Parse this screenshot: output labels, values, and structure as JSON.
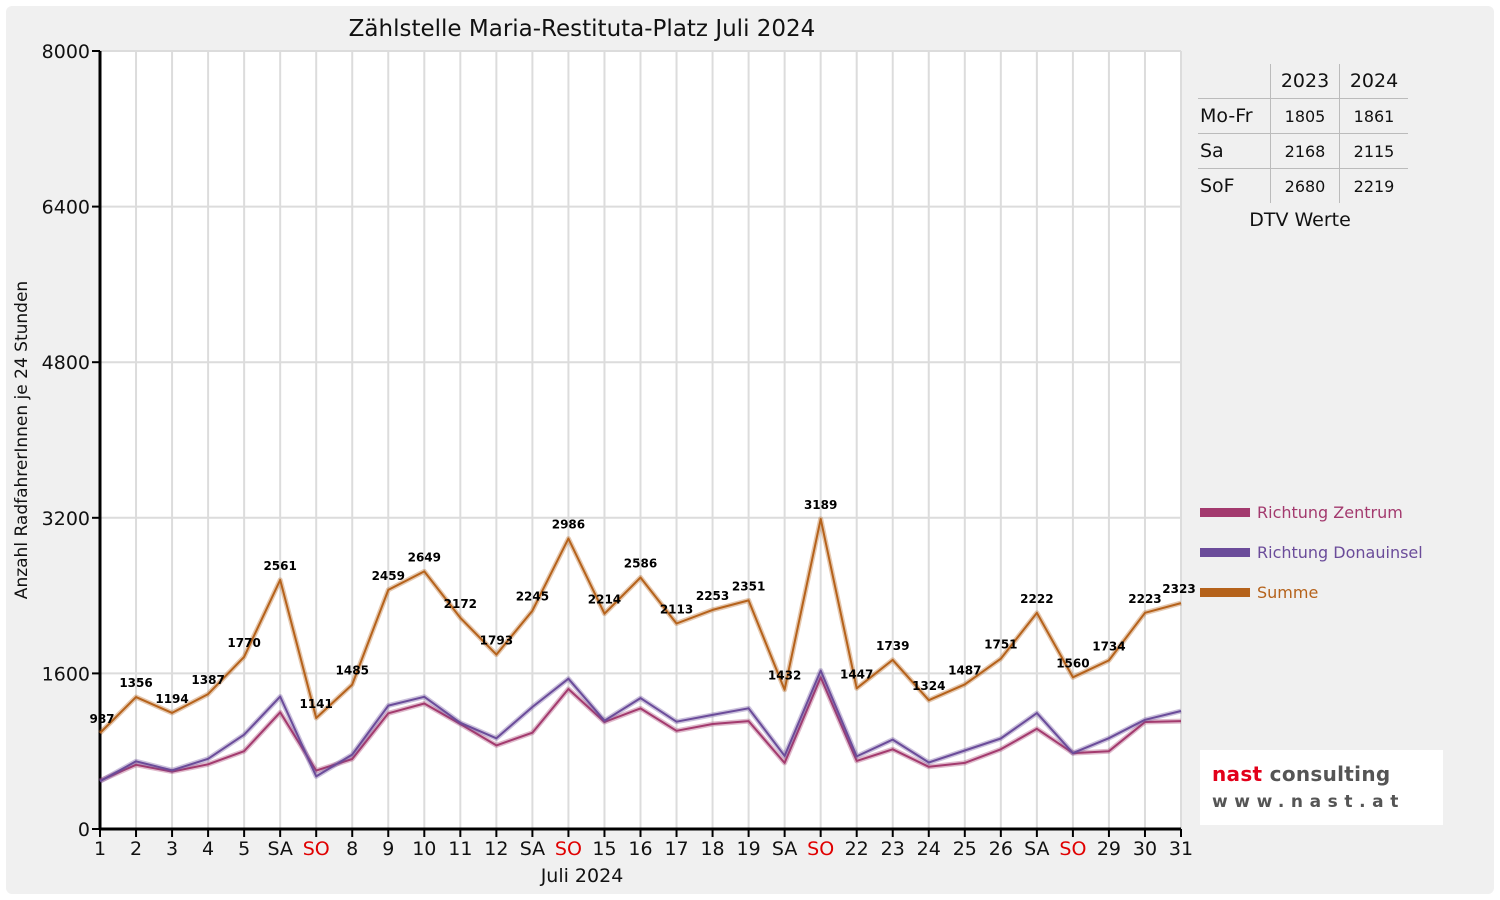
{
  "title": "Zählstelle Maria-Restituta-Platz Juli 2024",
  "colors": {
    "zentrum": "#a33a6e",
    "donauinsel": "#6b4c9a",
    "summe": "#b5621b",
    "sunday_label": "#e00000"
  },
  "chart_data": {
    "type": "line",
    "title": "Zählstelle Maria-Restituta-Platz Juli 2024",
    "xlabel": "Juli 2024",
    "ylabel": "Anzahl RadfahrerInnen je 24 Stunden",
    "ylim": [
      0,
      8000
    ],
    "yticks": [
      0,
      1600,
      3200,
      4800,
      6400,
      8000
    ],
    "grid": true,
    "legend_position": "right",
    "x": [
      1,
      2,
      3,
      4,
      5,
      6,
      7,
      8,
      9,
      10,
      11,
      12,
      13,
      14,
      15,
      16,
      17,
      18,
      19,
      20,
      21,
      22,
      23,
      24,
      25,
      26,
      27,
      28,
      29,
      30,
      31
    ],
    "x_tick_labels": [
      "1",
      "2",
      "3",
      "4",
      "5",
      "SA",
      "SO",
      "8",
      "9",
      "10",
      "11",
      "12",
      "SA",
      "SO",
      "15",
      "16",
      "17",
      "18",
      "19",
      "SA",
      "SO",
      "22",
      "23",
      "24",
      "25",
      "26",
      "SA",
      "SO",
      "29",
      "30",
      "31"
    ],
    "sunday_days": [
      7,
      14,
      21,
      28
    ],
    "series": [
      {
        "name": "Richtung Zentrum",
        "color": "#a33a6e",
        "values": [
          497,
          660,
          590,
          665,
          800,
          1200,
          600,
          720,
          1190,
          1290,
          1080,
          860,
          990,
          1440,
          1100,
          1240,
          1010,
          1080,
          1110,
          680,
          1560,
          700,
          820,
          640,
          680,
          820,
          1030,
          780,
          800,
          1100,
          1110
        ]
      },
      {
        "name": "Richtung Donauinsel",
        "color": "#6b4c9a",
        "values": [
          490,
          696,
          604,
          722,
          970,
          1361,
          541,
          765,
          1269,
          1359,
          1092,
          933,
          1255,
          1546,
          1114,
          1346,
          1103,
          1173,
          1241,
          752,
          1629,
          747,
          919,
          684,
          807,
          931,
          1192,
          780,
          934,
          1123,
          1213
        ]
      },
      {
        "name": "Summe",
        "color": "#b5621b",
        "values": [
          987,
          1356,
          1194,
          1387,
          1770,
          2561,
          1141,
          1485,
          2459,
          2649,
          2172,
          1793,
          2245,
          2986,
          2214,
          2586,
          2113,
          2253,
          2351,
          1432,
          3189,
          1447,
          1739,
          1324,
          1487,
          1751,
          2222,
          1560,
          1734,
          2223,
          2323
        ]
      }
    ],
    "data_labels": [
      "987",
      "1356",
      "1194",
      "1387",
      "1770",
      "2561",
      "1141",
      "1485",
      "2459",
      "2649",
      "2172",
      "1793",
      "2245",
      "2986",
      "2214",
      "2586",
      "2113",
      "2253",
      "2351",
      "1432",
      "3189",
      "1447",
      "1739",
      "1324",
      "1487",
      "1751",
      "2222",
      "1560",
      "1734",
      "2223",
      "2323"
    ]
  },
  "dtv_table": {
    "headers": [
      "2023",
      "2024"
    ],
    "rows": [
      {
        "label": "Mo-Fr",
        "v2023": "1805",
        "v2024": "1861"
      },
      {
        "label": "Sa",
        "v2023": "2168",
        "v2024": "2115"
      },
      {
        "label": "SoF",
        "v2023": "2680",
        "v2024": "2219"
      }
    ],
    "caption": "DTV Werte"
  },
  "legend": [
    {
      "label": "Richtung Zentrum",
      "color": "#a33a6e"
    },
    {
      "label": "Richtung Donauinsel",
      "color": "#6b4c9a"
    },
    {
      "label": "Summe",
      "color": "#b5621b"
    }
  ],
  "logo": {
    "name_part1": "nast",
    "name_part2": "consulting",
    "url": "www.nast.at"
  }
}
